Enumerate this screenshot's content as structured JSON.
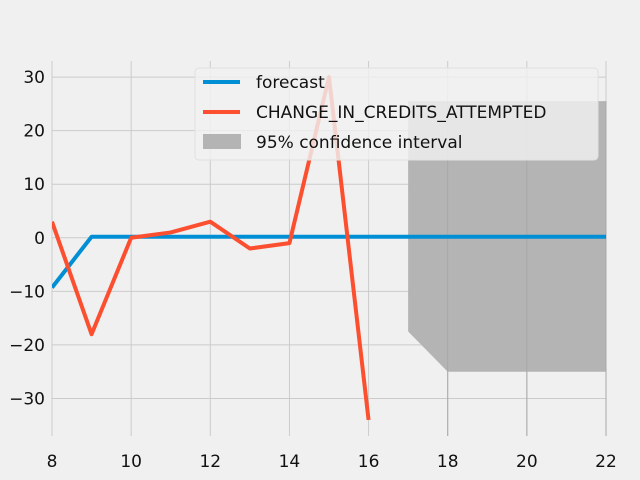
{
  "chart_data": {
    "type": "line",
    "x_range": [
      8,
      22
    ],
    "y_range": [
      -37,
      33
    ],
    "x_ticks": [
      8,
      10,
      12,
      14,
      16,
      18,
      20,
      22
    ],
    "y_ticks": [
      -30,
      -20,
      -10,
      0,
      10,
      20,
      30
    ],
    "grid": true,
    "legend_position": "top-right",
    "series": [
      {
        "name": "forecast",
        "color": "#008fd5",
        "x": [
          8,
          9,
          10,
          11,
          12,
          13,
          14,
          15,
          16,
          17,
          18,
          19,
          20,
          21,
          22
        ],
        "y": [
          -9.3,
          0.2,
          0.2,
          0.2,
          0.2,
          0.2,
          0.2,
          0.2,
          0.2,
          0.2,
          0.2,
          0.2,
          0.2,
          0.2,
          0.2
        ]
      },
      {
        "name": "CHANGE_IN_CREDITS_ATTEMPTED",
        "color": "#fc4f30",
        "x": [
          8,
          9,
          10,
          11,
          12,
          13,
          14,
          15,
          16
        ],
        "y": [
          3,
          -18,
          0,
          1,
          3,
          -2,
          -1,
          30,
          -34
        ]
      }
    ],
    "confidence_interval": {
      "name": "95% confidence interval",
      "color": "#b4b4b4",
      "x": [
        17,
        18,
        22
      ],
      "upper": [
        25.5,
        25.5,
        25.5
      ],
      "lower": [
        -17.5,
        -25,
        -25
      ]
    }
  }
}
